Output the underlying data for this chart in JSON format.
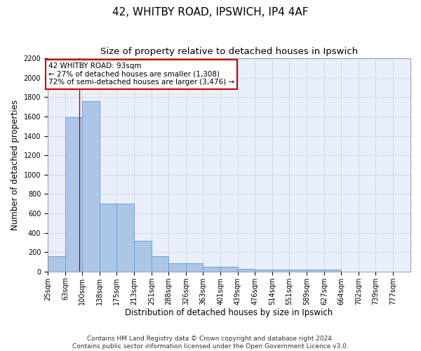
{
  "title": "42, WHITBY ROAD, IPSWICH, IP4 4AF",
  "subtitle": "Size of property relative to detached houses in Ipswich",
  "xlabel": "Distribution of detached houses by size in Ipswich",
  "ylabel": "Number of detached properties",
  "footer_line1": "Contains HM Land Registry data © Crown copyright and database right 2024.",
  "footer_line2": "Contains public sector information licensed under the Open Government Licence v3.0.",
  "bin_labels": [
    "25sqm",
    "63sqm",
    "100sqm",
    "138sqm",
    "175sqm",
    "213sqm",
    "251sqm",
    "288sqm",
    "326sqm",
    "363sqm",
    "401sqm",
    "439sqm",
    "476sqm",
    "514sqm",
    "551sqm",
    "589sqm",
    "627sqm",
    "664sqm",
    "702sqm",
    "739sqm",
    "777sqm"
  ],
  "bin_edges": [
    25,
    63,
    100,
    138,
    175,
    213,
    251,
    288,
    326,
    363,
    401,
    439,
    476,
    514,
    551,
    589,
    627,
    664,
    702,
    739,
    777
  ],
  "bar_heights": [
    160,
    1590,
    1760,
    700,
    700,
    320,
    160,
    85,
    85,
    50,
    50,
    30,
    20,
    20,
    20,
    20,
    20,
    0,
    0,
    0,
    0
  ],
  "bar_color": "#adc6e8",
  "bar_edge_color": "#5b9bd5",
  "background_color": "#eaf0fb",
  "red_line_x": 93,
  "annotation_text_line1": "42 WHITBY ROAD: 93sqm",
  "annotation_text_line2": "← 27% of detached houses are smaller (1,308)",
  "annotation_text_line3": "72% of semi-detached houses are larger (3,476) →",
  "annotation_box_color": "#ffffff",
  "annotation_border_color": "#cc0000",
  "ylim": [
    0,
    2200
  ],
  "ytick_step": 200,
  "grid_color": "#c8d0e0",
  "title_fontsize": 11,
  "subtitle_fontsize": 9.5,
  "axis_label_fontsize": 8.5,
  "tick_fontsize": 7,
  "annotation_fontsize": 7.5,
  "footer_fontsize": 6.5
}
